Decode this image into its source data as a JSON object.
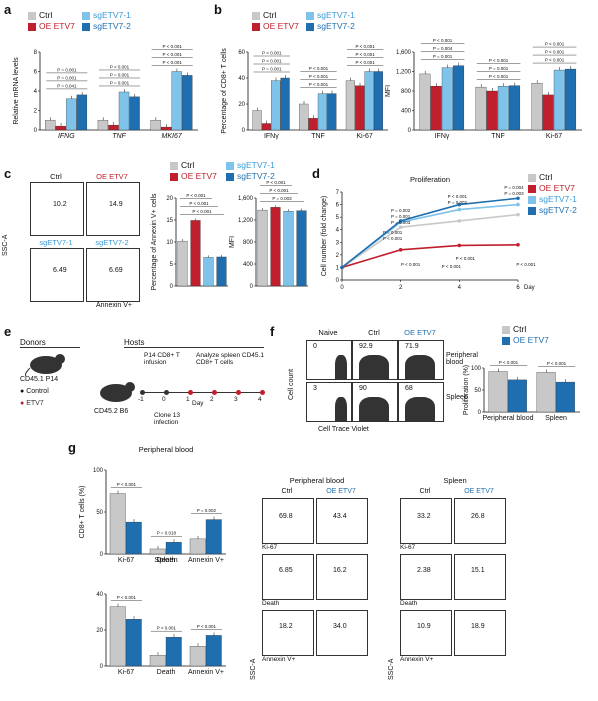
{
  "panels": {
    "a": "a",
    "b": "b",
    "c": "c",
    "d": "d",
    "e": "e",
    "f": "f",
    "g": "g"
  },
  "colors": {
    "ctrl": "#c8c8c8",
    "oe": "#c0202e",
    "sg1": "#7fc3ea",
    "sg2": "#1f6fb0"
  },
  "legend": {
    "ctrl": "Ctrl",
    "oe": "OE ETV7",
    "sg1": "sgETV7-1",
    "sg2": "sgETV7-2"
  },
  "chart_data": [
    {
      "id": "a",
      "type": "bar",
      "ylabel": "Relative mRNA levels",
      "categories": [
        "IFNG",
        "TNF",
        "MKI67"
      ],
      "ylim": [
        0,
        8
      ],
      "yticks": [
        0,
        2,
        4,
        6,
        8
      ],
      "series": [
        {
          "name": "Ctrl",
          "values": [
            1,
            1,
            1
          ]
        },
        {
          "name": "OE ETV7",
          "values": [
            0.4,
            0.5,
            0.3
          ]
        },
        {
          "name": "sgETV7-1",
          "values": [
            3.2,
            3.9,
            6.0
          ]
        },
        {
          "name": "sgETV7-2",
          "values": [
            3.6,
            3.4,
            5.6
          ]
        }
      ],
      "pvalues": [
        "P = 0.041",
        "P = 0.001",
        "P = 0.001",
        "P = 0.001",
        "P = 0.001",
        "P < 0.001",
        "P < 0.001",
        "P < 0.001",
        "P < 0.001"
      ]
    },
    {
      "id": "b1",
      "type": "bar",
      "ylabel": "Percentage of CD8+ T cells",
      "categories": [
        "IFNγ",
        "TNF",
        "Ki-67"
      ],
      "ylim": [
        0,
        60
      ],
      "yticks": [
        0,
        20,
        40,
        60
      ],
      "series": [
        {
          "name": "Ctrl",
          "values": [
            15,
            20,
            38
          ]
        },
        {
          "name": "OE ETV7",
          "values": [
            5,
            9,
            34
          ]
        },
        {
          "name": "sgETV7-1",
          "values": [
            38,
            28,
            45
          ]
        },
        {
          "name": "sgETV7-2",
          "values": [
            40,
            28,
            45
          ]
        }
      ],
      "pvalues": [
        "P = 0.001",
        "P < 0.001",
        "P < 0.001",
        "P < 0.001",
        "P < 0.001",
        "P < 0.001",
        "P < 0.001",
        "P < 0.001",
        "P < 0.001"
      ]
    },
    {
      "id": "b2",
      "type": "bar",
      "ylabel": "MFI",
      "categories": [
        "IFNγ",
        "TNF",
        "Ki-67"
      ],
      "ylim": [
        0,
        1600
      ],
      "yticks": [
        0,
        400,
        800,
        1200,
        1600
      ],
      "series": [
        {
          "name": "Ctrl",
          "values": [
            1150,
            880,
            960
          ]
        },
        {
          "name": "OE ETV7",
          "values": [
            900,
            800,
            720
          ]
        },
        {
          "name": "sgETV7-1",
          "values": [
            1280,
            900,
            1230
          ]
        },
        {
          "name": "sgETV7-2",
          "values": [
            1320,
            910,
            1250
          ]
        }
      ],
      "pvalues": [
        "P = 0.001",
        "P = 0.004",
        "P < 0.001",
        "P < 0.001",
        "P = 0.001",
        "P < 0.001",
        "P < 0.001",
        "P < 0.001",
        "P < 0.001"
      ]
    },
    {
      "id": "c1",
      "type": "bar",
      "ylabel": "Percentage of Annexin V+ cells",
      "categories": [
        "Ctrl",
        "OE ETV7",
        "sgETV7-1",
        "sgETV7-2"
      ],
      "ylim": [
        0,
        20
      ],
      "yticks": [
        0,
        5,
        10,
        15,
        20
      ],
      "values": [
        10.2,
        14.9,
        6.5,
        6.6
      ],
      "pvalues": [
        "P < 0.001",
        "P < 0.001",
        "P < 0.001"
      ]
    },
    {
      "id": "c2",
      "type": "bar",
      "ylabel": "MFI",
      "categories": [
        "Ctrl",
        "OE ETV7",
        "sgETV7-1",
        "sgETV7-2"
      ],
      "ylim": [
        0,
        1600
      ],
      "yticks": [
        0,
        400,
        800,
        1200,
        1600
      ],
      "values": [
        1380,
        1430,
        1360,
        1370
      ],
      "pvalues": [
        "P = 0.003",
        "P < 0.001",
        "P < 0.001"
      ]
    },
    {
      "id": "d",
      "type": "line",
      "title": "Proliferation",
      "ylabel": "Cell number (fold change)",
      "xlabel": "Day",
      "x": [
        0,
        2,
        4,
        6
      ],
      "ylim": [
        0,
        7
      ],
      "yticks": [
        0,
        1,
        2,
        3,
        4,
        5,
        6,
        7
      ],
      "xticks": [
        0,
        2,
        4,
        6
      ],
      "series": [
        {
          "name": "Ctrl",
          "values": [
            1,
            4.2,
            4.7,
            5.2
          ]
        },
        {
          "name": "OE ETV7",
          "values": [
            1,
            2.4,
            2.75,
            2.8
          ]
        },
        {
          "name": "sgETV7-1",
          "values": [
            1,
            4.6,
            5.6,
            6.0
          ]
        },
        {
          "name": "sgETV7-2",
          "values": [
            1,
            4.7,
            6.0,
            6.5
          ]
        }
      ],
      "pvalues": [
        "P = 0.001",
        "P < 0.001",
        "P = 0.001",
        "P = 0.003",
        "P = 0.002",
        "P < 0.001",
        "P < 0.001",
        "P = 0.002",
        "P < 0.001",
        "P = 0.004",
        "P = 0.003",
        "P < 0.001",
        "P < 0.001"
      ]
    },
    {
      "id": "f",
      "type": "bar",
      "ylabel": "Proliferation (%)",
      "categories": [
        "Peripheral blood",
        "Spleen"
      ],
      "ylim": [
        0,
        100
      ],
      "yticks": [
        0,
        50,
        100
      ],
      "series": [
        {
          "name": "Ctrl",
          "values": [
            92,
            90
          ]
        },
        {
          "name": "OE ETV7",
          "values": [
            73,
            68
          ]
        }
      ],
      "pvalues": [
        "P < 0.001",
        "P < 0.001"
      ]
    },
    {
      "id": "g1",
      "type": "bar",
      "ylabel": "CD8+ T cells (%)",
      "title": "Peripheral blood",
      "categories": [
        "Ki-67",
        "Death",
        "Annexin V+"
      ],
      "ylim": [
        0,
        100
      ],
      "yticks": [
        0,
        50,
        100
      ],
      "series": [
        {
          "name": "Ctrl",
          "values": [
            72,
            6,
            18
          ]
        },
        {
          "name": "OE ETV7",
          "values": [
            38,
            14,
            41
          ]
        }
      ],
      "pvalues": [
        "P < 0.001",
        "P = 0.018",
        "P = 0.002"
      ]
    },
    {
      "id": "g2",
      "type": "bar",
      "title": "Spleen",
      "categories": [
        "Ki-67",
        "Death",
        "Annexin V+"
      ],
      "ylim": [
        0,
        40
      ],
      "yticks": [
        0,
        20,
        40
      ],
      "series": [
        {
          "name": "Ctrl",
          "values": [
            33,
            6,
            11
          ]
        },
        {
          "name": "OE ETV7",
          "values": [
            26,
            16,
            17
          ]
        }
      ],
      "pvalues": [
        "P < 0.001",
        "P < 0.001",
        "P < 0.001"
      ]
    }
  ],
  "flow_c": {
    "titles": [
      "Ctrl",
      "OE ETV7",
      "sgETV7-1",
      "sgETV7-2"
    ],
    "values": [
      "10.2",
      "14.9",
      "6.49",
      "6.69"
    ],
    "ylabel": "SSC-A",
    "xlabel": "Annexin V+"
  },
  "e": {
    "donors": "Donors",
    "hosts": "Hosts",
    "d1": "CD45.1 P14",
    "control": "Control",
    "etv7": "ETV7",
    "host": "CD45.2 B6",
    "infuse": "P14 CD8+ T infusion",
    "analyze": "Analyze spleen CD45.1 CD8+ T cells",
    "clone": "Clone 13 infection",
    "day": "Day",
    "days": [
      "-1",
      "0",
      "1",
      "2",
      "3",
      "4"
    ]
  },
  "flow_f": {
    "cols": [
      "Naive",
      "Ctrl",
      "OE ETV7"
    ],
    "rows": [
      "Peripheral blood",
      "Spleen"
    ],
    "vals": [
      [
        "0",
        "92.9",
        "71.9"
      ],
      [
        "3",
        "90",
        "68"
      ]
    ],
    "ylabel": "Cell count",
    "xlabel": "Cell Trace Violet"
  },
  "flow_g": {
    "pb_title": "Peripheral blood",
    "sp_title": "Spleen",
    "cols": [
      "Ctrl",
      "OE ETV7"
    ],
    "rows": [
      "Ki-67",
      "Death",
      "Annexin V+"
    ],
    "ylabel": "SSC-A",
    "pb": [
      [
        "69.8",
        "43.4"
      ],
      [
        "6.85",
        "16.2"
      ],
      [
        "18.2",
        "34.0"
      ]
    ],
    "sp": [
      [
        "33.2",
        "26.8"
      ],
      [
        "2.38",
        "15.1"
      ],
      [
        "10.9",
        "18.9"
      ]
    ]
  }
}
